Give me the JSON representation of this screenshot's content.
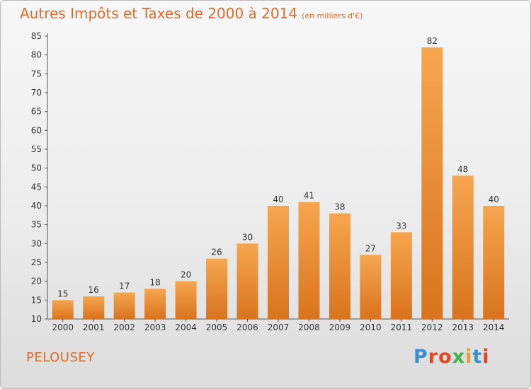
{
  "header": {
    "title": "Autres Impôts et Taxes de 2000 à 2014",
    "unit": "(en milliers d'€)"
  },
  "footer": {
    "commune": "PELOUSEY",
    "logo": [
      "P",
      "r",
      "o",
      "x",
      "i",
      "t",
      "i"
    ],
    "logo_colors": [
      "#3a8ed1",
      "#e7431e",
      "#e7431e",
      "#45b14d",
      "#e7a21e",
      "#3a8ed1",
      "#e7431e"
    ]
  },
  "colors": {
    "bar_top": "#f6a64f",
    "bar_bottom": "#d9731d",
    "text": "#e06a2a"
  },
  "chart_data": {
    "type": "bar",
    "title": "Autres Impôts et Taxes de 2000 à 2014",
    "subtitle": "(en milliers d'€)",
    "categories": [
      "2000",
      "2001",
      "2002",
      "2003",
      "2004",
      "2005",
      "2006",
      "2007",
      "2008",
      "2009",
      "2010",
      "2011",
      "2012",
      "2013",
      "2014"
    ],
    "values": [
      15,
      16,
      17,
      18,
      20,
      26,
      30,
      40,
      41,
      38,
      27,
      33,
      82,
      48,
      40
    ],
    "ylim": [
      10,
      85
    ],
    "yticks": [
      10,
      15,
      20,
      25,
      30,
      35,
      40,
      45,
      50,
      55,
      60,
      65,
      70,
      75,
      80,
      85
    ],
    "grid": false,
    "data_labels": true
  }
}
